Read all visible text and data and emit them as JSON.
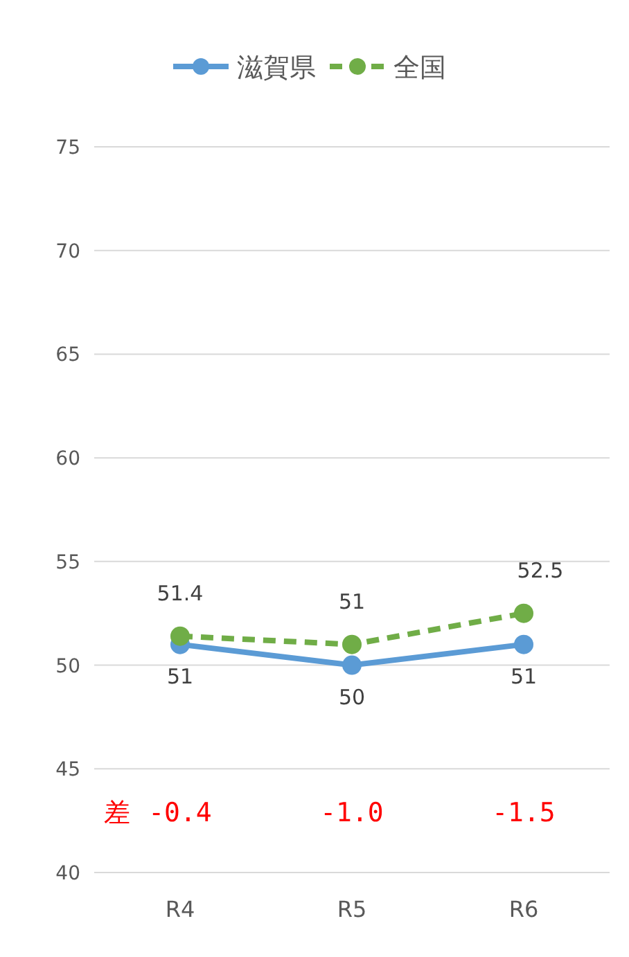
{
  "chart_data": {
    "type": "line",
    "categories": [
      "R4",
      "R5",
      "R6"
    ],
    "series": [
      {
        "name": "滋賀県",
        "color": "#5b9bd5",
        "values": [
          51,
          50,
          51
        ],
        "line_style": "solid"
      },
      {
        "name": "全国",
        "color": "#70ad47",
        "values": [
          51.4,
          51,
          52.5
        ],
        "line_style": "dashed"
      }
    ],
    "ylim": [
      40,
      75
    ],
    "yticks": [
      40,
      45,
      50,
      55,
      60,
      65,
      70,
      75
    ],
    "grid": "y",
    "legend": "top",
    "marker": "circle",
    "data_labels": true,
    "annotations": [
      "差",
      "-0.4",
      "-1.0",
      "-1.5"
    ]
  }
}
